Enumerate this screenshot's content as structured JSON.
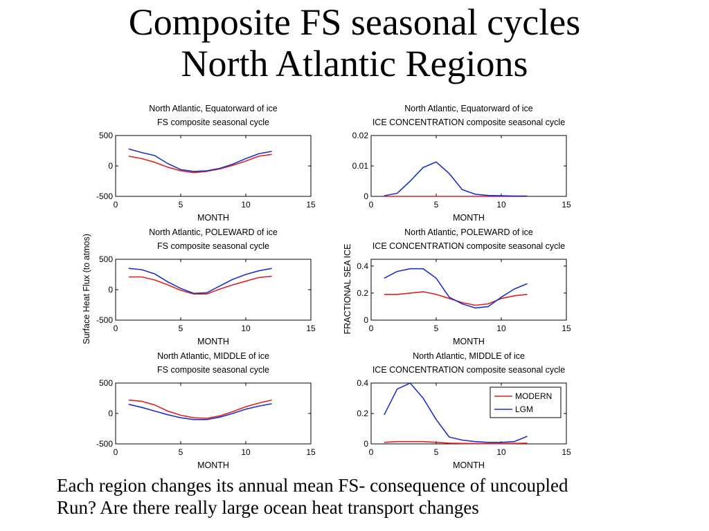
{
  "slide": {
    "title_line1": "Composite FS seasonal cycles",
    "title_line2": "North Atlantic Regions",
    "caption_line1": "Each region changes its annual mean FS- consequence of uncoupled",
    "caption_line2": "Run? Are there really large ocean heat transport changes"
  },
  "shared_labels": {
    "left_ylabel": "Surface Heat Flux (to atmos)",
    "right_ylabel": "FRACTIONAL SEA ICE"
  },
  "colors": {
    "MODERN": "#e02020",
    "LGM": "#1c2fc8"
  },
  "chart_data": [
    {
      "type": "line",
      "title": [
        "North Atlantic, Equatorward of ice",
        "FS composite seasonal cycle"
      ],
      "xlabel": "MONTH",
      "xlim": [
        0,
        15
      ],
      "ylim": [
        -500,
        500
      ],
      "xticks": [
        0,
        5,
        10,
        15
      ],
      "xtick_labels": [
        "0",
        "5",
        "10",
        "15"
      ],
      "yticks": [
        -500,
        0,
        500
      ],
      "ytick_labels": [
        "-500",
        "0",
        "500"
      ],
      "x": [
        1,
        2,
        3,
        4,
        5,
        6,
        7,
        8,
        9,
        10,
        11,
        12
      ],
      "series": [
        {
          "name": "MODERN",
          "values": [
            160,
            120,
            60,
            -20,
            -80,
            -110,
            -90,
            -50,
            10,
            80,
            160,
            190
          ]
        },
        {
          "name": "LGM",
          "values": [
            280,
            220,
            170,
            40,
            -60,
            -90,
            -80,
            -40,
            30,
            120,
            200,
            240
          ]
        }
      ]
    },
    {
      "type": "line",
      "title": [
        "North Atlantic, Equatorward of ice",
        "ICE CONCENTRATION composite seasonal cycle"
      ],
      "xlabel": "MONTH",
      "xlim": [
        0,
        15
      ],
      "ylim": [
        0,
        0.02
      ],
      "xticks": [
        0,
        5,
        10,
        15
      ],
      "xtick_labels": [
        "0",
        "5",
        "10",
        "15"
      ],
      "yticks": [
        0,
        0.01,
        0.02
      ],
      "ytick_labels": [
        "0",
        "0.01",
        "0.02"
      ],
      "x": [
        1,
        2,
        3,
        4,
        5,
        6,
        7,
        8,
        9,
        10,
        11,
        12
      ],
      "series": [
        {
          "name": "MODERN",
          "values": [
            0,
            0,
            0,
            0,
            0,
            0,
            0,
            0,
            0,
            0,
            0,
            0
          ]
        },
        {
          "name": "LGM",
          "values": [
            0.0002,
            0.001,
            0.005,
            0.0095,
            0.0113,
            0.0075,
            0.0022,
            0.0007,
            0.0003,
            0.0002,
            0.0001,
            0.0001
          ]
        }
      ]
    },
    {
      "type": "line",
      "title": [
        "North Atlantic, POLEWARD of ice",
        "FS composite seasonal cycle"
      ],
      "xlabel": "MONTH",
      "xlim": [
        0,
        15
      ],
      "ylim": [
        -500,
        500
      ],
      "xticks": [
        0,
        5,
        10,
        15
      ],
      "xtick_labels": [
        "0",
        "5",
        "10",
        "15"
      ],
      "yticks": [
        -500,
        0,
        500
      ],
      "ytick_labels": [
        "-500",
        "0",
        "500"
      ],
      "x": [
        1,
        2,
        3,
        4,
        5,
        6,
        7,
        8,
        9,
        10,
        11,
        12
      ],
      "series": [
        {
          "name": "MODERN",
          "values": [
            210,
            210,
            160,
            80,
            -10,
            -70,
            -70,
            10,
            80,
            140,
            200,
            220
          ]
        },
        {
          "name": "LGM",
          "values": [
            350,
            330,
            260,
            130,
            20,
            -60,
            -50,
            60,
            170,
            250,
            310,
            350
          ]
        }
      ]
    },
    {
      "type": "line",
      "title": [
        "North Atlantic, POLEWARD of ice",
        "ICE CONCENTRATION composite seasonal cycle"
      ],
      "xlabel": "MONTH",
      "xlim": [
        0,
        15
      ],
      "ylim": [
        0,
        0.45
      ],
      "xticks": [
        0,
        5,
        10,
        15
      ],
      "xtick_labels": [
        "0",
        "5",
        "10",
        "15"
      ],
      "yticks": [
        0,
        0.2,
        0.4
      ],
      "ytick_labels": [
        "0",
        "0.2",
        "0.4"
      ],
      "x": [
        1,
        2,
        3,
        4,
        5,
        6,
        7,
        8,
        9,
        10,
        11,
        12
      ],
      "series": [
        {
          "name": "MODERN",
          "values": [
            0.19,
            0.19,
            0.2,
            0.21,
            0.19,
            0.16,
            0.13,
            0.11,
            0.12,
            0.16,
            0.18,
            0.19
          ]
        },
        {
          "name": "LGM",
          "values": [
            0.31,
            0.36,
            0.38,
            0.38,
            0.31,
            0.17,
            0.12,
            0.09,
            0.1,
            0.17,
            0.23,
            0.27
          ]
        }
      ]
    },
    {
      "type": "line",
      "title": [
        "North Atlantic, MIDDLE of ice",
        "FS composite seasonal cycle"
      ],
      "xlabel": "MONTH",
      "xlim": [
        0,
        15
      ],
      "ylim": [
        -500,
        500
      ],
      "xticks": [
        0,
        5,
        10,
        15
      ],
      "xtick_labels": [
        "0",
        "5",
        "10",
        "15"
      ],
      "yticks": [
        -500,
        0,
        500
      ],
      "ytick_labels": [
        "-500",
        "0",
        "500"
      ],
      "x": [
        1,
        2,
        3,
        4,
        5,
        6,
        7,
        8,
        9,
        10,
        11,
        12
      ],
      "series": [
        {
          "name": "MODERN",
          "values": [
            220,
            200,
            140,
            40,
            -30,
            -70,
            -80,
            -40,
            30,
            110,
            170,
            220
          ]
        },
        {
          "name": "LGM",
          "values": [
            150,
            100,
            40,
            -20,
            -70,
            -100,
            -100,
            -60,
            0,
            70,
            120,
            160
          ]
        }
      ]
    },
    {
      "type": "line",
      "title": [
        "North Atlantic, MIDDLE of ice",
        "ICE CONCENTRATION composite seasonal cycle"
      ],
      "xlabel": "MONTH",
      "xlim": [
        0,
        15
      ],
      "ylim": [
        0,
        0.4
      ],
      "xticks": [
        0,
        5,
        10,
        15
      ],
      "xtick_labels": [
        "0",
        "5",
        "10",
        "15"
      ],
      "yticks": [
        0,
        0.2,
        0.4
      ],
      "ytick_labels": [
        "0",
        "0.2",
        "0.4"
      ],
      "legend": {
        "entries": [
          "MODERN",
          "LGM"
        ],
        "placement": "top-right"
      },
      "x": [
        1,
        2,
        3,
        4,
        5,
        6,
        7,
        8,
        9,
        10,
        11,
        12
      ],
      "series": [
        {
          "name": "MODERN",
          "values": [
            0.01,
            0.015,
            0.015,
            0.015,
            0.01,
            0.005,
            0.003,
            0.002,
            0.002,
            0.002,
            0.003,
            0.005
          ]
        },
        {
          "name": "LGM",
          "values": [
            0.19,
            0.36,
            0.4,
            0.3,
            0.16,
            0.045,
            0.025,
            0.015,
            0.01,
            0.01,
            0.015,
            0.05
          ]
        }
      ]
    }
  ]
}
